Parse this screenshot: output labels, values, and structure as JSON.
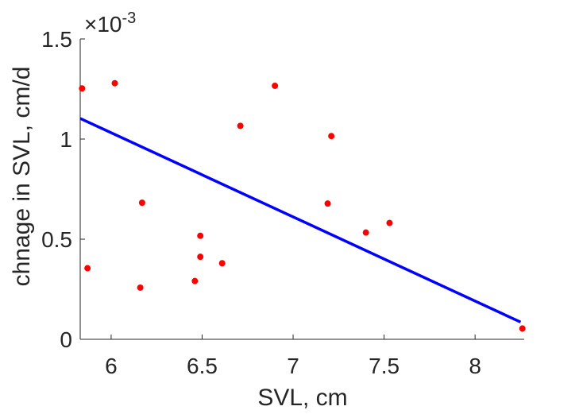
{
  "chart_data": {
    "type": "scatter",
    "xlabel": "SVL, cm",
    "ylabel": "chnage in SVL, cm/d",
    "xlim": [
      5.83,
      8.27
    ],
    "ylim": [
      0,
      0.0015
    ],
    "x_ticks": [
      6,
      6.5,
      7,
      7.5,
      8
    ],
    "x_tick_labels": [
      "6",
      "6.5",
      "7",
      "7.5",
      "8"
    ],
    "y_ticks": [
      0,
      0.0005,
      0.001,
      0.0015
    ],
    "y_tick_labels": [
      "0",
      "0.5",
      "1",
      "1.5"
    ],
    "y_exponent_base": "×10",
    "y_exponent_power": "-3",
    "grid": false,
    "colors": {
      "points": "#ff0000",
      "fit_line": "#0000ff",
      "axis": "#262626"
    },
    "series": [
      {
        "type": "scatter",
        "points": [
          {
            "x": 5.84,
            "y": 0.001253
          },
          {
            "x": 5.87,
            "y": 0.000355
          },
          {
            "x": 6.02,
            "y": 0.001279
          },
          {
            "x": 6.16,
            "y": 0.000258
          },
          {
            "x": 6.17,
            "y": 0.000682
          },
          {
            "x": 6.46,
            "y": 0.000291
          },
          {
            "x": 6.49,
            "y": 0.000412
          },
          {
            "x": 6.49,
            "y": 0.000517
          },
          {
            "x": 6.61,
            "y": 0.00038
          },
          {
            "x": 6.71,
            "y": 0.001066
          },
          {
            "x": 6.9,
            "y": 0.001266
          },
          {
            "x": 7.19,
            "y": 0.000678
          },
          {
            "x": 7.21,
            "y": 0.001015
          },
          {
            "x": 7.4,
            "y": 0.000533
          },
          {
            "x": 7.53,
            "y": 0.000581
          },
          {
            "x": 8.26,
            "y": 5.4e-05
          }
        ]
      },
      {
        "type": "line",
        "points": [
          {
            "x": 5.83,
            "y": 0.001103
          },
          {
            "x": 8.25,
            "y": 8.6e-05
          }
        ]
      }
    ]
  }
}
